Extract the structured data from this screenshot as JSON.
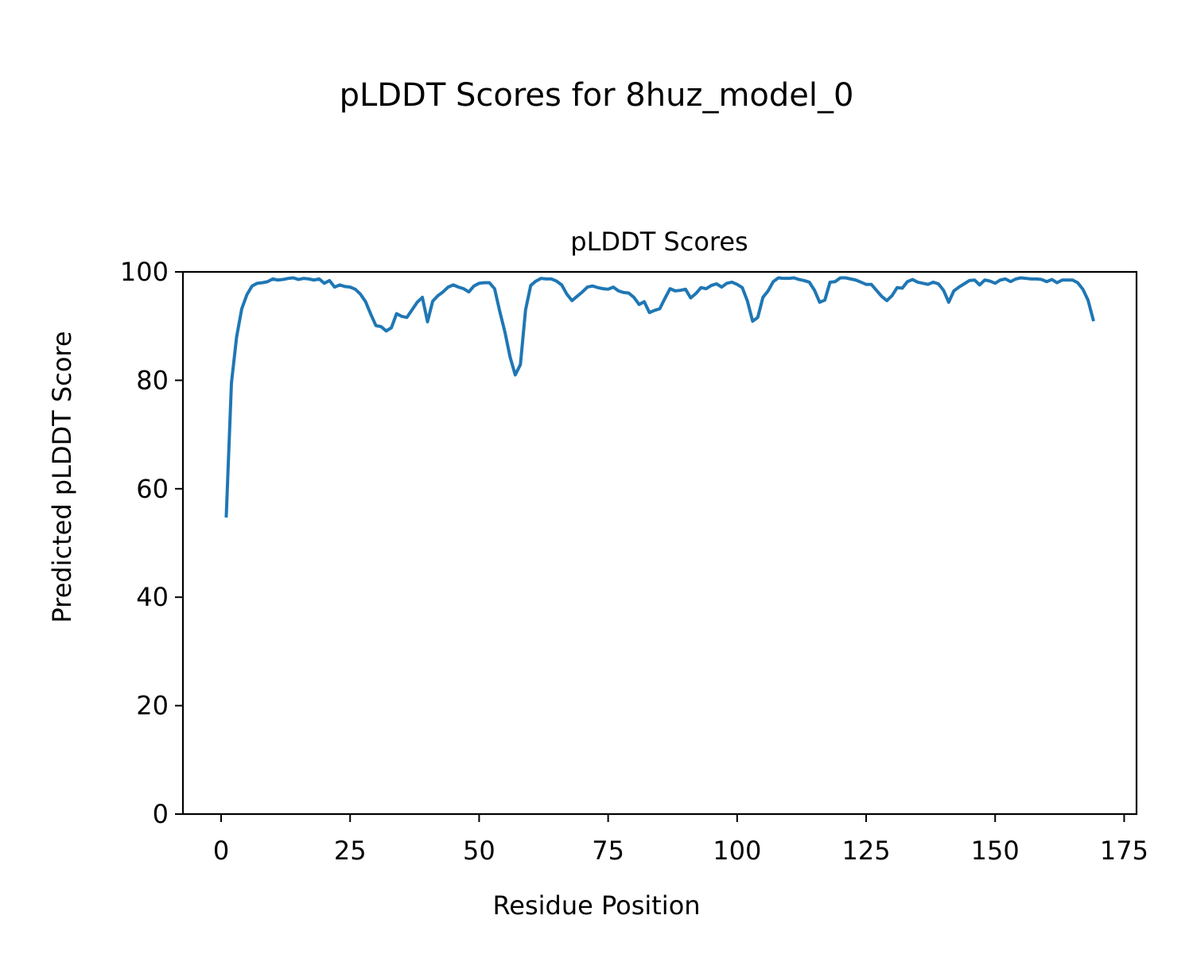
{
  "figure": {
    "suptitle": "pLDDT Scores for 8huz_model_0"
  },
  "chart_data": {
    "type": "line",
    "title": "pLDDT Scores",
    "xlabel": "Residue Position",
    "ylabel": "Predicted pLDDT Score",
    "xlim": [
      -7.4,
      177.4
    ],
    "ylim": [
      0,
      100
    ],
    "xticks": [
      0,
      25,
      50,
      75,
      100,
      125,
      150,
      175
    ],
    "yticks": [
      0,
      20,
      40,
      60,
      80,
      100
    ],
    "grid": false,
    "line_color": "#1f77b4",
    "series": [
      {
        "x": [
          1,
          2,
          3,
          4,
          5,
          6,
          7,
          8,
          9,
          10,
          11,
          12,
          13,
          14,
          15,
          16,
          17,
          18,
          19,
          20,
          21,
          22,
          23,
          24,
          25,
          26,
          27,
          28,
          29,
          30,
          31,
          32,
          33,
          34,
          35,
          36,
          37,
          38,
          39,
          40,
          41,
          42,
          43,
          44,
          45,
          46,
          47,
          48,
          49,
          50,
          51,
          52,
          53,
          54,
          55,
          56,
          57,
          58,
          59,
          60,
          61,
          62,
          63,
          64,
          65,
          66,
          67,
          68,
          69,
          70,
          71,
          72,
          73,
          74,
          75,
          76,
          77,
          78,
          79,
          80,
          81,
          82,
          83,
          84,
          85,
          86,
          87,
          88,
          89,
          90,
          91,
          92,
          93,
          94,
          95,
          96,
          97,
          98,
          99,
          100,
          101,
          102,
          103,
          104,
          105,
          106,
          107,
          108,
          109,
          110,
          111,
          112,
          113,
          114,
          115,
          116,
          117,
          118,
          119,
          120,
          121,
          122,
          123,
          124,
          125,
          126,
          127,
          128,
          129,
          130,
          131,
          132,
          133,
          134,
          135,
          136,
          137,
          138,
          139,
          140,
          141,
          142,
          143,
          144,
          145,
          146,
          147,
          148,
          149,
          150,
          151,
          152,
          153,
          154,
          155,
          156,
          157,
          158,
          159,
          160,
          161,
          162,
          163,
          164,
          165,
          166,
          167,
          168,
          169
        ],
        "values": [
          55,
          79.5,
          88,
          93.2,
          95.8,
          97.4,
          97.9,
          98,
          98.2,
          98.7,
          98.5,
          98.6,
          98.8,
          98.9,
          98.6,
          98.8,
          98.7,
          98.5,
          98.7,
          97.9,
          98.4,
          97.2,
          97.6,
          97.3,
          97.2,
          96.8,
          95.9,
          94.5,
          92.2,
          90.1,
          89.9,
          89.1,
          89.7,
          92.3,
          91.8,
          91.6,
          93,
          94.4,
          95.3,
          90.8,
          94.6,
          95.6,
          96.3,
          97.2,
          97.6,
          97.2,
          96.9,
          96.3,
          97.4,
          97.9,
          98,
          98,
          96.9,
          92.7,
          88.9,
          84.3,
          81,
          82.9,
          93,
          97.5,
          98.3,
          98.8,
          98.7,
          98.7,
          98.3,
          97.6,
          95.9,
          94.7,
          95.5,
          96.3,
          97.2,
          97.4,
          97.1,
          96.9,
          96.8,
          97.2,
          96.5,
          96.2,
          96.1,
          95.3,
          94,
          94.5,
          92.5,
          92.9,
          93.2,
          95.1,
          96.9,
          96.5,
          96.6,
          96.8,
          95.2,
          96,
          97.1,
          96.9,
          97.5,
          97.8,
          97.2,
          97.9,
          98.1,
          97.7,
          97.1,
          94.6,
          90.9,
          91.6,
          95.3,
          96.5,
          98.2,
          98.9,
          98.8,
          98.8,
          98.9,
          98.6,
          98.4,
          98.1,
          96.6,
          94.4,
          94.8,
          98.1,
          98.2,
          98.9,
          98.9,
          98.7,
          98.5,
          98.1,
          97.7,
          97.7,
          96.6,
          95.5,
          94.7,
          95.6,
          97.1,
          97,
          98.2,
          98.6,
          98.1,
          97.9,
          97.7,
          98.1,
          97.8,
          96.6,
          94.4,
          96.5,
          97.2,
          97.8,
          98.4,
          98.5,
          97.6,
          98.5,
          98.3,
          97.9,
          98.5,
          98.7,
          98.2,
          98.7,
          98.9,
          98.8,
          98.7,
          98.7,
          98.6,
          98.2,
          98.6,
          98,
          98.5,
          98.5,
          98.5,
          98,
          96.8,
          94.8,
          91.2
        ]
      }
    ]
  }
}
